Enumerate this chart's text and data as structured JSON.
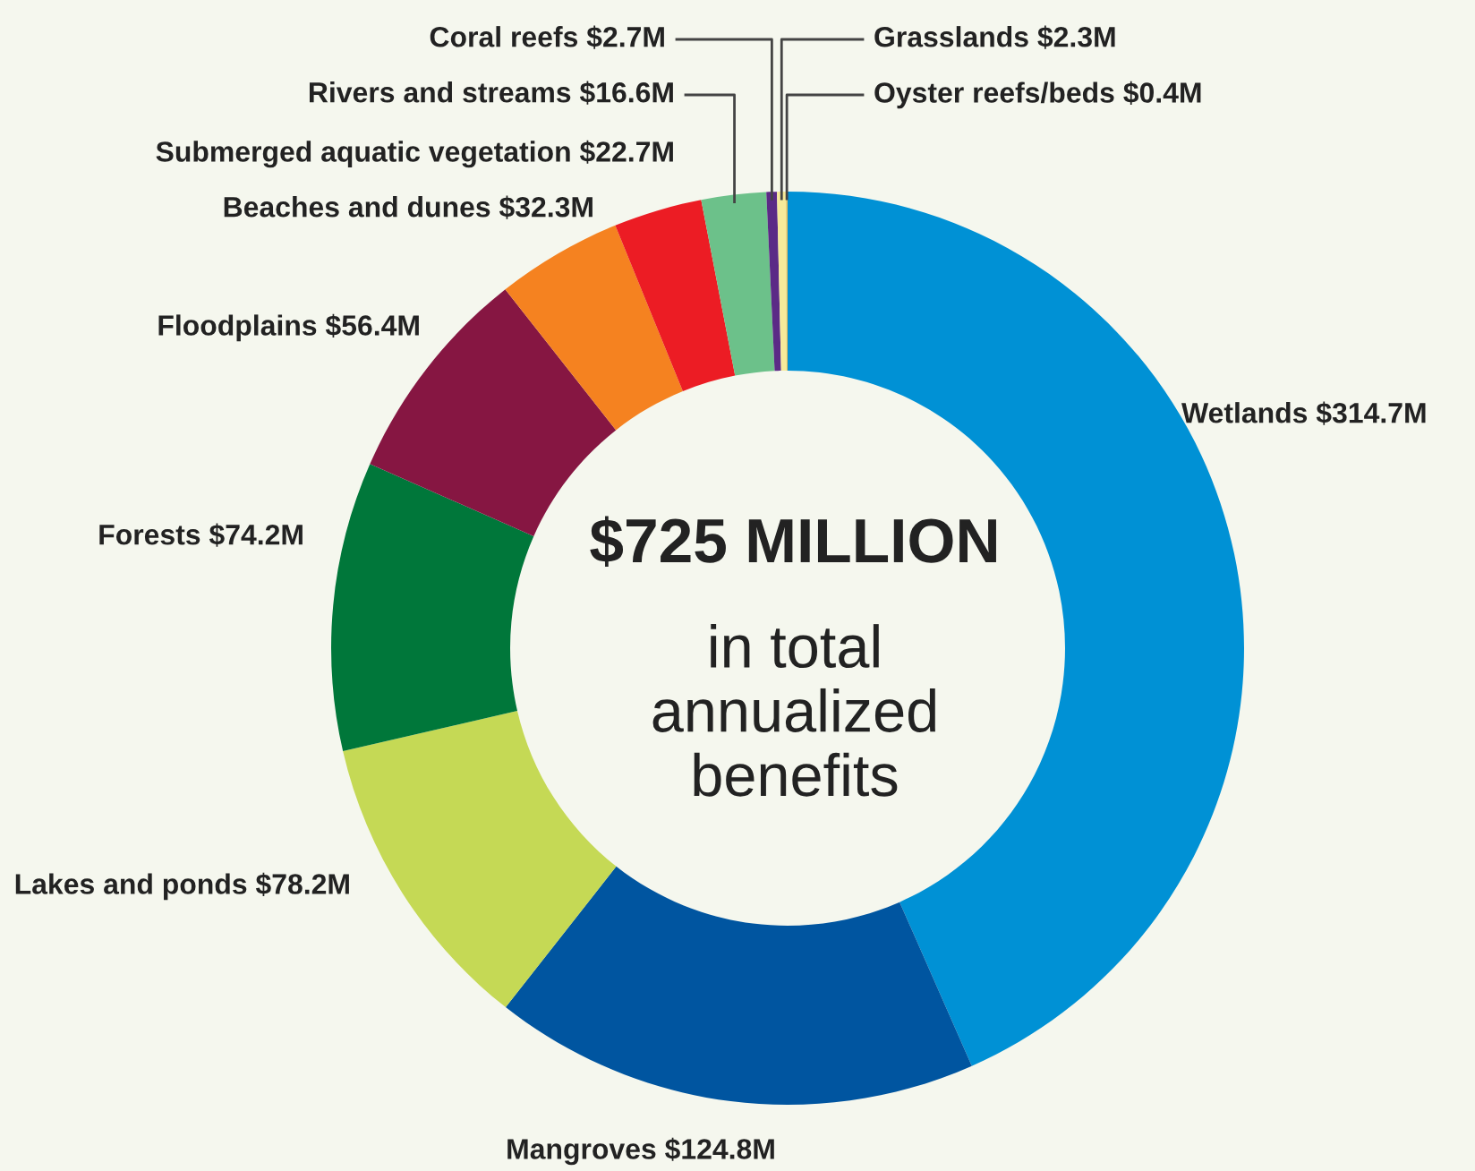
{
  "chart_data": {
    "type": "donut",
    "title": "$725 MILLION",
    "subtitle": "in total\nannualized\nbenefits",
    "categories": [
      "Wetlands",
      "Mangroves",
      "Lakes and ponds",
      "Forests",
      "Floodplains",
      "Beaches and dunes",
      "Submerged aquatic vegetation",
      "Rivers and streams",
      "Coral reefs",
      "Grasslands",
      "Oyster reefs/beds"
    ],
    "values": [
      314.7,
      124.8,
      78.2,
      74.2,
      56.4,
      32.3,
      22.7,
      16.6,
      2.7,
      2.3,
      0.4
    ],
    "value_labels": [
      "$314.7M",
      "$124.8M",
      "$78.2M",
      "$74.2M",
      "$56.4M",
      "$32.3M",
      "$22.7M",
      "$16.6M",
      "$2.7M",
      "$2.3M",
      "$0.4M"
    ],
    "colors": [
      "#0091d5",
      "#0055a0",
      "#c5d955",
      "#00773a",
      "#861642",
      "#f58220",
      "#ec1c24",
      "#6cc18a",
      "#5b2a86",
      "#f6ea9a",
      "#e0c060"
    ]
  }
}
